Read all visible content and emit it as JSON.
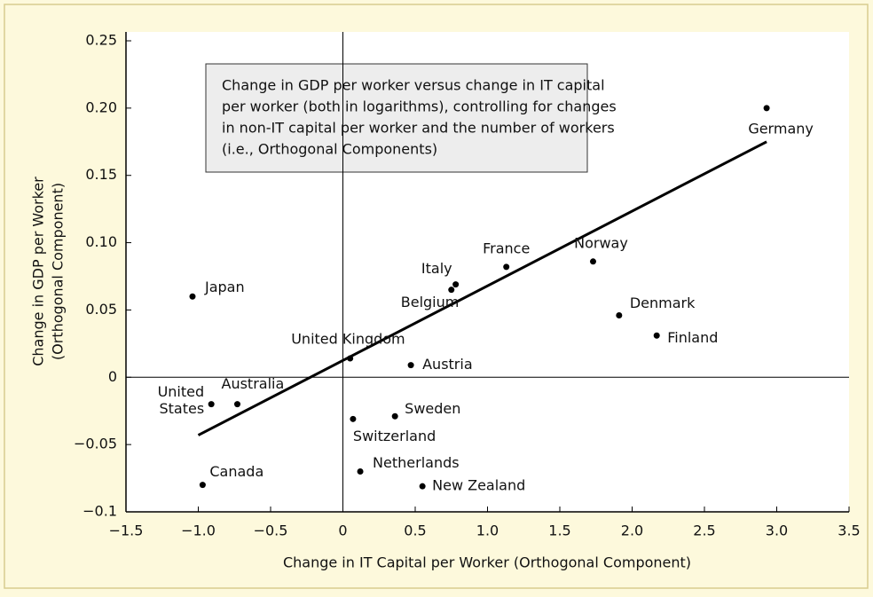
{
  "chart_data": {
    "type": "scatter",
    "annotation": [
      "Change in GDP per worker versus change in IT capital",
      "per worker (both in logarithms), controlling for changes",
      "in non-IT capital per worker and the number of workers",
      "(i.e., Orthogonal Components)"
    ],
    "x_label": "Change in IT Capital per Worker (Orthogonal Component)",
    "y_label": [
      "Change in GDP per Worker",
      "(Orthogonal Component)"
    ],
    "categories": [
      "Japan",
      "United States",
      "Australia",
      "Canada",
      "United Kingdom",
      "Austria",
      "Switzerland",
      "Sweden",
      "Netherlands",
      "New Zealand",
      "Belgium",
      "Italy",
      "France",
      "Norway",
      "Denmark",
      "Finland",
      "Germany"
    ],
    "x": [
      -1.04,
      -0.91,
      -0.73,
      -0.97,
      0.05,
      0.47,
      0.07,
      0.36,
      0.12,
      0.55,
      0.75,
      0.78,
      1.13,
      1.73,
      1.91,
      2.17,
      2.93
    ],
    "values": [
      0.06,
      -0.02,
      -0.02,
      -0.08,
      0.014,
      0.009,
      -0.031,
      -0.029,
      -0.07,
      -0.081,
      0.065,
      0.069,
      0.082,
      0.086,
      0.046,
      0.031,
      0.2
    ],
    "color": "#000000",
    "trend_line": {
      "x": [
        -1.0,
        2.93
      ],
      "y": [
        -0.043,
        0.175
      ]
    },
    "xlim": [
      -1.5,
      3.5
    ],
    "xticks": [
      {
        "value": -1.5,
        "label": "−1.5"
      },
      {
        "value": -1.0,
        "label": "−1.0"
      },
      {
        "value": -0.5,
        "label": "−0.5"
      },
      0,
      0.5,
      {
        "value": 1.0,
        "label": "1.0"
      },
      1.5,
      {
        "value": 2.0,
        "label": "2.0"
      },
      2.5,
      {
        "value": 3.0,
        "label": "3.0"
      },
      3.5
    ],
    "ylim": [
      -0.1,
      0.25
    ],
    "yticks": [
      {
        "value": -0.1,
        "label": "−0.1"
      },
      {
        "value": -0.05,
        "label": "−0.05"
      },
      0,
      0.05,
      {
        "value": 0.1,
        "label": "0.10"
      },
      0.15,
      {
        "value": 0.2,
        "label": "0.20"
      },
      0.25
    ],
    "grid": false
  }
}
